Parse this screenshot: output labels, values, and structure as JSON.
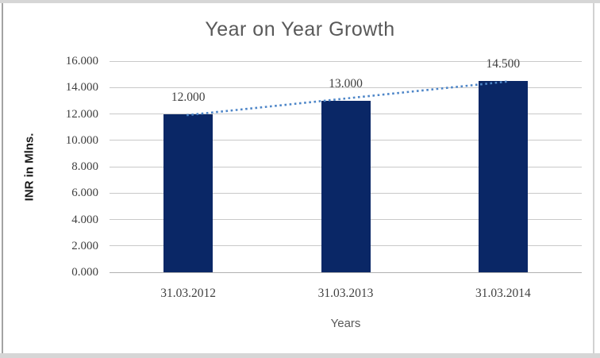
{
  "chart_data": {
    "type": "bar",
    "title": "Year on Year Growth",
    "xlabel": "Years",
    "ylabel": "INR in Mlns.",
    "categories": [
      "31.03.2012",
      "31.03.2013",
      "31.03.2014"
    ],
    "values": [
      12000,
      13000,
      14500
    ],
    "data_labels": [
      "12.000",
      "13.000",
      "14.500"
    ],
    "y_tick_labels": [
      "0.000",
      "2.000",
      "4.000",
      "6.000",
      "8.000",
      "10.000",
      "12.000",
      "14.000",
      "16.000"
    ],
    "ylim": [
      0,
      16000
    ],
    "y_step": 2000,
    "grid": true,
    "legend": "none",
    "colors": {
      "bar_fill": "#0a2766",
      "trendline": "#4e86c8",
      "gridline": "#c9c9c9",
      "axis_line": "#b0b0b0",
      "title_text": "#595959",
      "number_text": "#404040",
      "axis_title_text": "#1a1a1a"
    },
    "trendline": {
      "type": "linear",
      "style": "dotted",
      "color": "#4e86c8",
      "start_value": 11917,
      "end_value": 14417
    }
  }
}
